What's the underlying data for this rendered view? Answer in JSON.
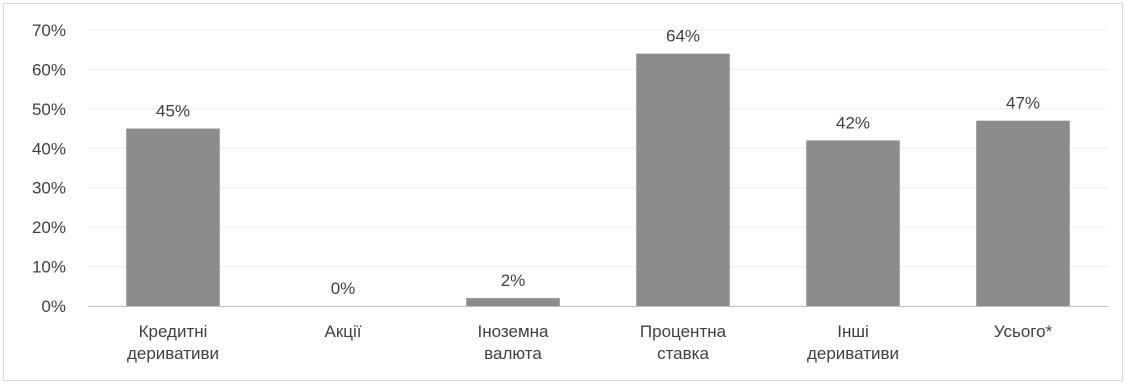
{
  "chart_data": {
    "type": "bar",
    "title": "",
    "xlabel": "",
    "ylabel": "",
    "categories": [
      [
        "Кредитні",
        "деривативи"
      ],
      [
        "Акції"
      ],
      [
        "Іноземна",
        "валюта"
      ],
      [
        "Процентна",
        "ставка"
      ],
      [
        "Інші",
        "деривативи"
      ],
      [
        "Усього*"
      ]
    ],
    "values": [
      45,
      0,
      2,
      64,
      42,
      47
    ],
    "data_labels": [
      "45%",
      "0%",
      "2%",
      "64%",
      "42%",
      "47%"
    ],
    "ylim": [
      0,
      70
    ],
    "yticks": [
      "0%",
      "10%",
      "20%",
      "30%",
      "40%",
      "50%",
      "60%",
      "70%"
    ],
    "grid": true,
    "legend": "none",
    "colors": {
      "bar": "#8c8c8c",
      "grid": "#ececec",
      "axis": "#bfbfbf",
      "text": "#404040"
    }
  }
}
